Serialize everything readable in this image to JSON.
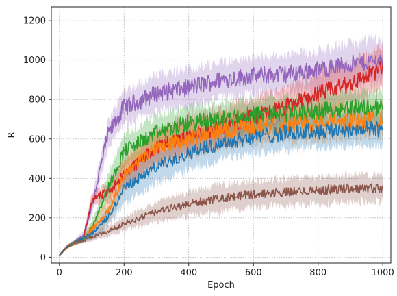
{
  "chart_data": {
    "type": "line",
    "title": "",
    "xlabel": "Epoch",
    "ylabel": "R",
    "xlim": [
      -25,
      1025
    ],
    "ylim": [
      -30,
      1270
    ],
    "xticks": [
      0,
      200,
      400,
      600,
      800,
      1000
    ],
    "yticks": [
      0,
      200,
      400,
      600,
      800,
      1000,
      1200
    ],
    "grid": true,
    "legend": "none",
    "x": [
      0,
      25,
      50,
      75,
      100,
      150,
      200,
      300,
      400,
      500,
      600,
      700,
      800,
      900,
      1000
    ],
    "series": [
      {
        "color": "#9467bd",
        "values": [
          10,
          55,
          80,
          110,
          260,
          620,
          760,
          830,
          860,
          900,
          920,
          930,
          950,
          980,
          1000
        ],
        "band": [
          5,
          10,
          15,
          25,
          50,
          80,
          100,
          110,
          110,
          110,
          110,
          110,
          115,
          120,
          130
        ]
      },
      {
        "color": "#d62728",
        "values": [
          10,
          55,
          75,
          100,
          290,
          330,
          420,
          560,
          620,
          660,
          710,
          760,
          830,
          880,
          960
        ],
        "band": [
          5,
          10,
          15,
          20,
          40,
          60,
          80,
          100,
          110,
          110,
          110,
          110,
          120,
          120,
          130
        ]
      },
      {
        "color": "#2ca02c",
        "values": [
          10,
          55,
          75,
          95,
          150,
          350,
          540,
          630,
          680,
          700,
          720,
          730,
          740,
          760,
          760
        ],
        "band": [
          5,
          10,
          15,
          20,
          40,
          80,
          100,
          100,
          100,
          100,
          100,
          100,
          100,
          100,
          100
        ]
      },
      {
        "color": "#ff7f0e",
        "values": [
          10,
          55,
          75,
          95,
          140,
          230,
          420,
          560,
          600,
          640,
          660,
          670,
          680,
          690,
          700
        ],
        "band": [
          5,
          10,
          15,
          20,
          40,
          70,
          100,
          100,
          100,
          100,
          100,
          100,
          100,
          100,
          100
        ]
      },
      {
        "color": "#1f77b4",
        "values": [
          10,
          55,
          75,
          95,
          120,
          200,
          350,
          460,
          530,
          580,
          610,
          630,
          640,
          650,
          650
        ],
        "band": [
          5,
          10,
          15,
          20,
          35,
          60,
          90,
          100,
          100,
          100,
          100,
          100,
          100,
          100,
          100
        ]
      },
      {
        "color": "#8c564b",
        "values": [
          10,
          55,
          75,
          85,
          100,
          130,
          170,
          230,
          270,
          300,
          320,
          330,
          340,
          350,
          350
        ],
        "band": [
          5,
          10,
          10,
          15,
          20,
          30,
          40,
          60,
          70,
          80,
          80,
          80,
          80,
          80,
          80
        ]
      }
    ]
  }
}
